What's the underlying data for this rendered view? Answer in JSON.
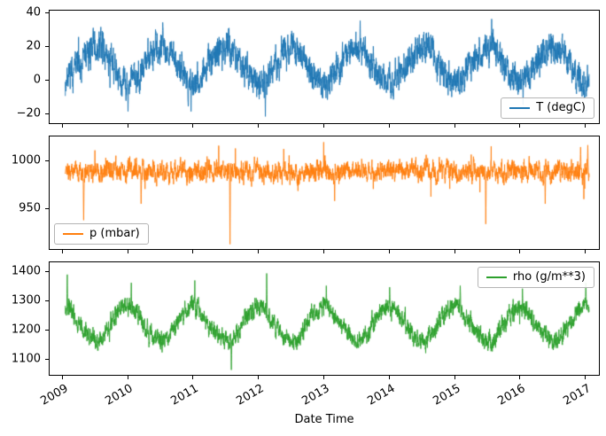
{
  "figure": {
    "background": "#ffffff"
  },
  "chart_data": {
    "type": "line",
    "title": "",
    "xlabel": "Date Time",
    "description": "Three stacked time-series subplots of weather data (2009-2017): temperature, pressure, air density. Dense noisy daily data with strong seasonal cycles.",
    "xlim": [
      2008.8,
      2017.2
    ],
    "x_start": 2009.04,
    "x_end": 2017.05,
    "n_points": 3200,
    "xticks": [
      2009,
      2010,
      2011,
      2012,
      2013,
      2014,
      2015,
      2016,
      2017
    ],
    "xtick_labels": [
      "2009",
      "2010",
      "2011",
      "2012",
      "2013",
      "2014",
      "2015",
      "2016",
      "2017"
    ],
    "grid": false,
    "subplots": [
      {
        "name": "temperature",
        "legend": "T (degC)",
        "legend_position": "lower right",
        "color": "#1f77b4",
        "ylim": [
          -26,
          41
        ],
        "yticks": [
          -20,
          0,
          20,
          40
        ],
        "ytick_labels": [
          "−20",
          "0",
          "20",
          "40"
        ],
        "seed": 7,
        "monthly_means": [
          -1.5,
          0.5,
          4.5,
          9,
          14,
          17,
          19,
          18.5,
          14,
          9,
          3.5,
          0
        ],
        "ar": 0.65,
        "ar_noise": 5,
        "jitter": 5,
        "spikes": {
          "prob": 0.01,
          "up_frac": 0.5,
          "amp": 6
        },
        "events": [
          {
            "x": 2009.05,
            "y": -7
          },
          {
            "x": 2010.0,
            "y": -19
          },
          {
            "x": 2010.53,
            "y": 34
          },
          {
            "x": 2010.92,
            "y": -16
          },
          {
            "x": 2012.1,
            "y": -22
          },
          {
            "x": 2013.05,
            "y": -12
          },
          {
            "x": 2013.55,
            "y": 35
          },
          {
            "x": 2014.05,
            "y": -10
          },
          {
            "x": 2015.56,
            "y": 36
          },
          {
            "x": 2016.04,
            "y": -15
          },
          {
            "x": 2017.0,
            "y": -7
          }
        ]
      },
      {
        "name": "pressure",
        "legend": "p (mbar)",
        "legend_position": "lower left",
        "color": "#ff7f0e",
        "ylim": [
          908,
          1025
        ],
        "yticks": [
          950,
          1000
        ],
        "ytick_labels": [
          "950",
          "1000"
        ],
        "seed": 21,
        "mean": 988.5,
        "ar": 0.7,
        "ar_noise": 6,
        "jitter": 5,
        "spikes": {
          "prob": 0.012,
          "up_frac": 0.25,
          "amp": 18
        },
        "events": [
          {
            "x": 2009.32,
            "y": 938
          },
          {
            "x": 2010.2,
            "y": 955
          },
          {
            "x": 2011.56,
            "y": 913
          },
          {
            "x": 2012.38,
            "y": 1012
          },
          {
            "x": 2013.16,
            "y": 958
          },
          {
            "x": 2015.47,
            "y": 934
          },
          {
            "x": 2016.38,
            "y": 955
          },
          {
            "x": 2016.92,
            "y": 1014
          },
          {
            "x": 2017.03,
            "y": 1016
          }
        ]
      },
      {
        "name": "density",
        "legend": "rho (g/m**3)",
        "legend_position": "upper right",
        "color": "#2ca02c",
        "ylim": [
          1045,
          1430
        ],
        "yticks": [
          1100,
          1200,
          1300,
          1400
        ],
        "ytick_labels": [
          "1100",
          "1200",
          "1300",
          "1400"
        ],
        "seed": 33,
        "monthly_means": [
          1275,
          1268,
          1240,
          1212,
          1188,
          1170,
          1160,
          1162,
          1190,
          1222,
          1252,
          1270
        ],
        "ar": 0.65,
        "ar_noise": 18,
        "jitter": 16,
        "spikes": {
          "prob": 0.01,
          "up_frac": 0.75,
          "amp": 28
        },
        "events": [
          {
            "x": 2009.07,
            "y": 1388
          },
          {
            "x": 2010.05,
            "y": 1360
          },
          {
            "x": 2011.02,
            "y": 1368
          },
          {
            "x": 2011.58,
            "y": 1062
          },
          {
            "x": 2012.12,
            "y": 1392
          },
          {
            "x": 2013.03,
            "y": 1350
          },
          {
            "x": 2014.0,
            "y": 1345
          },
          {
            "x": 2015.08,
            "y": 1350
          },
          {
            "x": 2016.03,
            "y": 1340
          },
          {
            "x": 2017.0,
            "y": 1360
          }
        ]
      }
    ]
  }
}
